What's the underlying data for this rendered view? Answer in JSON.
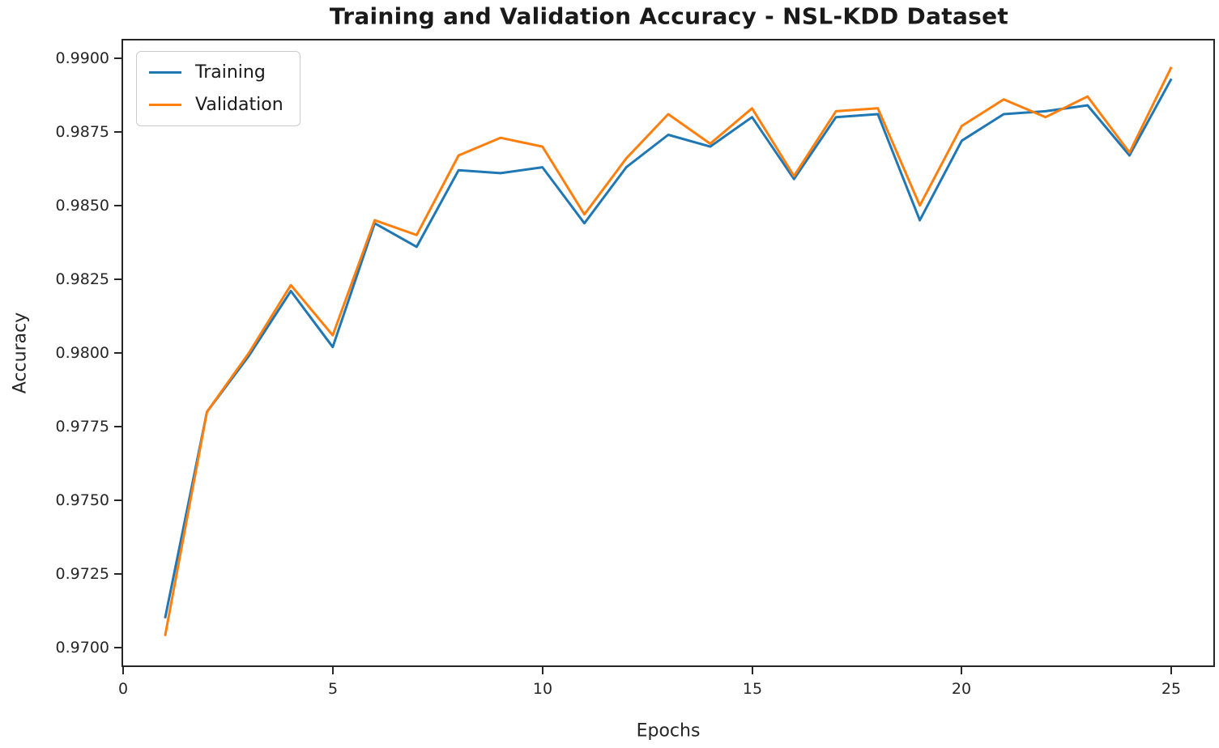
{
  "chart_data": {
    "type": "line",
    "title": "Training and Validation Accuracy - NSL-KDD Dataset",
    "xlabel": "Epochs",
    "ylabel": "Accuracy",
    "x": [
      1,
      2,
      3,
      4,
      5,
      6,
      7,
      8,
      9,
      10,
      11,
      12,
      13,
      14,
      15,
      16,
      17,
      18,
      19,
      20,
      21,
      22,
      23,
      24,
      25
    ],
    "series": [
      {
        "name": "Training",
        "color": "#1f77b4",
        "values": [
          0.971,
          0.978,
          0.9799,
          0.9821,
          0.9802,
          0.9844,
          0.9836,
          0.9862,
          0.9861,
          0.9863,
          0.9844,
          0.9863,
          0.9874,
          0.987,
          0.988,
          0.9859,
          0.988,
          0.9881,
          0.9845,
          0.9872,
          0.9881,
          0.9882,
          0.9884,
          0.9867,
          0.9893
        ]
      },
      {
        "name": "Validation",
        "color": "#ff7f0e",
        "values": [
          0.9704,
          0.978,
          0.98,
          0.9823,
          0.9806,
          0.9845,
          0.984,
          0.9867,
          0.9873,
          0.987,
          0.9847,
          0.9866,
          0.9881,
          0.9871,
          0.9883,
          0.986,
          0.9882,
          0.9883,
          0.985,
          0.9877,
          0.9886,
          0.988,
          0.9887,
          0.9868,
          0.9897
        ]
      }
    ],
    "xlim": [
      0,
      26
    ],
    "ylim": [
      0.9694,
      0.9906
    ],
    "x_ticks": [
      0,
      5,
      10,
      15,
      20,
      25
    ],
    "y_ticks": [
      0.97,
      0.9725,
      0.975,
      0.9775,
      0.98,
      0.9825,
      0.985,
      0.9875,
      0.99
    ],
    "grid": false,
    "legend_position": "upper left",
    "line_width": 3
  }
}
